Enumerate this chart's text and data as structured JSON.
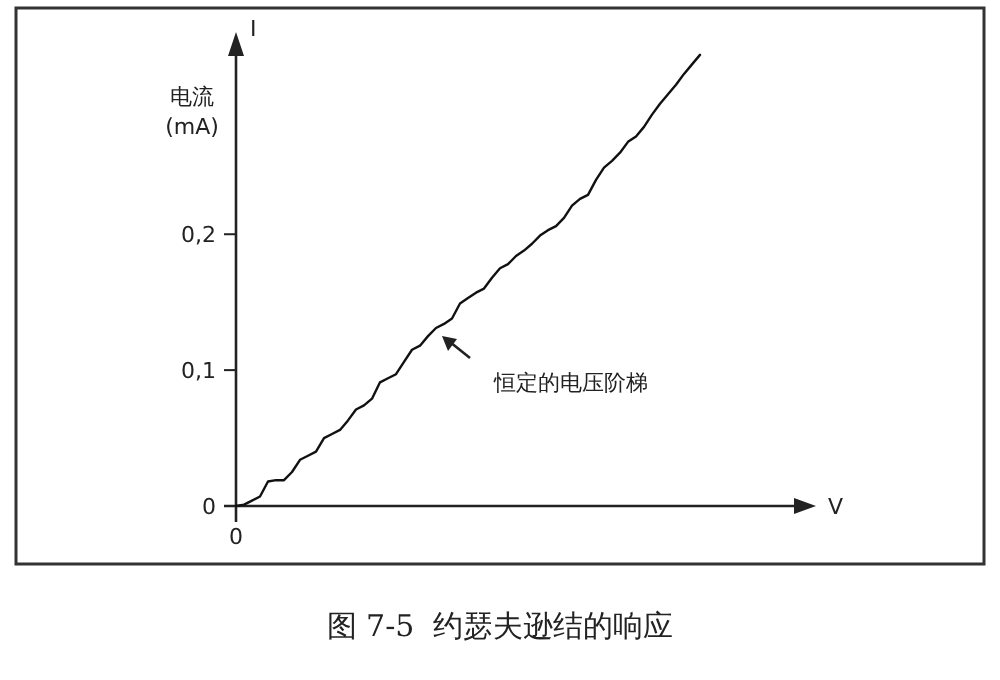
{
  "chart_data": {
    "type": "line",
    "title": "图 7-5  约瑟夫逊结的响应",
    "ylabel": "电流\n(mA)",
    "annotations": [
      "I",
      "V",
      "恒定的电压阶梯"
    ],
    "categories": [
      "0",
      null,
      null,
      null,
      null,
      null,
      null,
      null,
      null,
      null,
      null,
      null,
      null,
      null,
      null,
      null,
      null,
      null,
      null,
      null,
      null,
      null,
      null,
      null,
      null,
      null,
      null,
      null,
      null,
      null,
      null,
      null,
      null,
      null,
      null,
      null,
      null,
      null,
      null,
      null,
      null,
      null,
      null,
      null,
      null,
      null,
      null,
      null,
      null,
      null,
      null,
      null,
      null,
      null,
      null,
      null,
      null,
      null,
      null
    ],
    "series": [
      {
        "color": "#111111",
        "values": [
          0,
          0.001,
          0.004,
          0.007,
          0.018,
          0.019,
          0.019,
          0.025,
          0.034,
          0.037,
          0.04,
          0.05,
          0.053,
          0.056,
          0.063,
          0.071,
          0.074,
          0.079,
          0.091,
          0.094,
          0.097,
          0.106,
          0.115,
          0.118,
          0.125,
          0.131,
          0.134,
          0.138,
          0.149,
          0.153,
          0.157,
          0.16,
          0.168,
          0.175,
          0.178,
          0.184,
          0.188,
          0.193,
          0.199,
          0.203,
          0.206,
          0.212,
          0.221,
          0.226,
          0.229,
          0.24,
          0.249,
          0.254,
          0.26,
          0.268,
          0.272,
          0.279,
          0.288,
          0.296,
          0.303,
          0.31,
          0.318,
          0.325,
          0.332
        ]
      }
    ],
    "ylim": [
      0,
      0.34
    ],
    "yticks": [
      0,
      {
        "value": 0.1,
        "label": "0,1"
      },
      {
        "value": 0.2,
        "label": "0,2"
      }
    ],
    "grid": false,
    "marker": "none",
    "line_style": "solid"
  }
}
